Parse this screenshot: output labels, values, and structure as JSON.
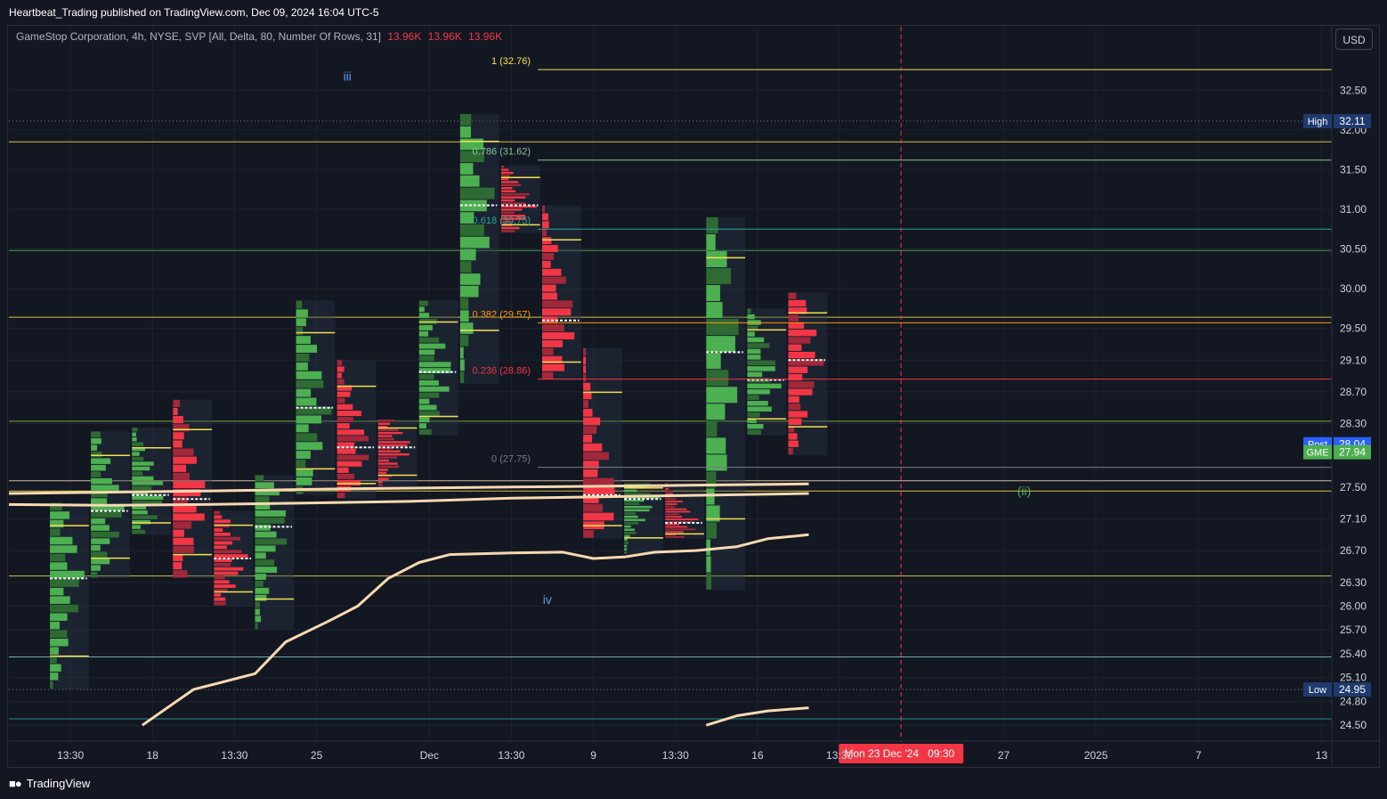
{
  "header": {
    "published_text": "Heartbeat_Trading published on TradingView.com, Dec 09, 2024 16:04 UTC-5"
  },
  "legend": {
    "title": "GameStop Corporation, 4h, NYSE, SVP [All, Delta, 80, Number Of Rows, 31]",
    "values": [
      "13.96K",
      "13.96K",
      "13.96K"
    ]
  },
  "currency_button": "USD",
  "footer": {
    "brand": "TradingView"
  },
  "colors": {
    "background": "#131722",
    "up": "#4caf50",
    "down": "#f23645",
    "fib": "#f5e050",
    "wave_label": "#5b9cf6",
    "vwap": "#f7d9b0"
  },
  "chart_data": {
    "type": "candlestick",
    "symbol": "GME",
    "timeframe": "4h",
    "ylim": [
      24.3,
      33.3
    ],
    "y_ticks": [
      32.5,
      32.0,
      31.5,
      31.0,
      30.5,
      30.0,
      29.5,
      29.1,
      28.7,
      28.3,
      27.5,
      27.1,
      26.7,
      26.3,
      26.0,
      25.7,
      25.4,
      25.1,
      24.8,
      24.5
    ],
    "y_tick_labels": [
      "32.50",
      "32.00",
      "31.50",
      "31.00",
      "30.50",
      "30.00",
      "29.50",
      "29.10",
      "28.70",
      "28.30",
      "27.50",
      "27.10",
      "26.70",
      "26.30",
      "26.00",
      "25.70",
      "25.40",
      "25.10",
      "24.80",
      "24.50"
    ],
    "x_ticks": [
      {
        "label": "13:30",
        "x": 0.2
      },
      {
        "label": "18",
        "x": 1.0
      },
      {
        "label": "13:30",
        "x": 1.8
      },
      {
        "label": "25",
        "x": 2.6
      },
      {
        "label": "Dec",
        "x": 3.7
      },
      {
        "label": "13:30",
        "x": 4.5
      },
      {
        "label": "9",
        "x": 5.3
      },
      {
        "label": "13:30",
        "x": 6.1
      },
      {
        "label": "16",
        "x": 6.9
      },
      {
        "label": "13:30",
        "x": 7.7
      },
      {
        "label": "27",
        "x": 9.3
      },
      {
        "label": "2025",
        "x": 10.2
      },
      {
        "label": "7",
        "x": 11.2
      },
      {
        "label": "13",
        "x": 12.4
      }
    ],
    "xlim": [
      -0.4,
      12.5
    ],
    "price_badges": [
      {
        "label": "High",
        "value": "32.11",
        "price": 32.11,
        "color": "#1e3a6e"
      },
      {
        "label": "Post",
        "value": "28.04",
        "price": 28.04,
        "color": "#2962ff"
      },
      {
        "label": "GME",
        "value": "27.94",
        "price": 27.94,
        "color": "#4caf50"
      },
      {
        "label": "Low",
        "value": "24.95",
        "price": 24.95,
        "color": "#1e3a6e"
      }
    ],
    "crosshair": {
      "date_label": "Mon 23 Dec '24",
      "time_label": "09:30",
      "x": 8.3
    },
    "fib_levels": [
      {
        "ratio": "1",
        "price_text": "32.76",
        "price": 32.76,
        "color": "#f5e050"
      },
      {
        "ratio": "0.786",
        "price_text": "31.62",
        "price": 31.62,
        "color": "#81c995"
      },
      {
        "ratio": "0.618",
        "price_text": "30.75",
        "price": 30.75,
        "color": "#26a69a"
      },
      {
        "ratio": "0.382",
        "price_text": "29.57",
        "price": 29.57,
        "color": "#ff9800"
      },
      {
        "ratio": "0.236",
        "price_text": "28.86",
        "price": 28.86,
        "color": "#f23645"
      },
      {
        "ratio": "0",
        "price_text": "27.75",
        "price": 27.75,
        "color": "#787b86"
      }
    ],
    "horizontal_lines": [
      {
        "price": 31.85,
        "color": "#f5e050"
      },
      {
        "price": 30.48,
        "color": "#4caf50"
      },
      {
        "price": 29.64,
        "color": "#f5e050"
      },
      {
        "price": 28.33,
        "color": "#8bc34a"
      },
      {
        "price": 27.58,
        "color": "#f7d9b0"
      },
      {
        "price": 27.45,
        "color": "#f5e050"
      },
      {
        "price": 26.38,
        "color": "#f5e050"
      },
      {
        "price": 25.36,
        "color": "#80cbc4"
      },
      {
        "price": 24.58,
        "color": "#26a69a"
      }
    ],
    "wave_labels": [
      {
        "text": "iii",
        "x": 2.9,
        "price": 32.62
      },
      {
        "text": "iv",
        "x": 4.85,
        "price": 26.03
      },
      {
        "text": "(ii)",
        "x": 9.5,
        "price": 27.4
      }
    ],
    "volume_profiles": [
      {
        "x": 0.0,
        "high": 27.3,
        "low": 24.95,
        "poc": 26.35,
        "dir": "up"
      },
      {
        "x": 0.4,
        "high": 28.2,
        "low": 26.35,
        "poc": 27.2,
        "dir": "up"
      },
      {
        "x": 0.8,
        "high": 28.25,
        "low": 26.9,
        "poc": 27.4,
        "dir": "up"
      },
      {
        "x": 1.2,
        "high": 28.6,
        "low": 26.35,
        "poc": 27.35,
        "dir": "down"
      },
      {
        "x": 1.6,
        "high": 27.2,
        "low": 26.0,
        "poc": 26.6,
        "dir": "down"
      },
      {
        "x": 2.0,
        "high": 27.65,
        "low": 25.7,
        "poc": 27.0,
        "dir": "up"
      },
      {
        "x": 2.4,
        "high": 29.85,
        "low": 27.4,
        "poc": 28.5,
        "dir": "up"
      },
      {
        "x": 2.8,
        "high": 29.1,
        "low": 27.35,
        "poc": 28.0,
        "dir": "down"
      },
      {
        "x": 3.2,
        "high": 28.35,
        "low": 27.5,
        "poc": 28.0,
        "dir": "down"
      },
      {
        "x": 3.6,
        "high": 29.85,
        "low": 28.15,
        "poc": 28.95,
        "dir": "up"
      },
      {
        "x": 4.0,
        "high": 32.2,
        "low": 28.8,
        "poc": 31.05,
        "dir": "up"
      },
      {
        "x": 4.4,
        "high": 31.55,
        "low": 30.7,
        "poc": 31.05,
        "dir": "down"
      },
      {
        "x": 4.8,
        "high": 31.05,
        "low": 28.85,
        "poc": 29.6,
        "dir": "down"
      },
      {
        "x": 5.2,
        "high": 29.25,
        "low": 26.85,
        "poc": 27.4,
        "dir": "down"
      },
      {
        "x": 5.6,
        "high": 27.55,
        "low": 26.65,
        "poc": 27.35,
        "dir": "up"
      },
      {
        "x": 6.0,
        "high": 27.55,
        "low": 26.85,
        "poc": 27.05,
        "dir": "down"
      },
      {
        "x": 6.4,
        "high": 30.9,
        "low": 26.2,
        "poc": 29.2,
        "dir": "up"
      },
      {
        "x": 6.8,
        "high": 29.75,
        "low": 28.15,
        "poc": 28.85,
        "dir": "up"
      },
      {
        "x": 7.2,
        "high": 29.95,
        "low": 27.9,
        "poc": 29.1,
        "dir": "down"
      }
    ],
    "vwap_lines": [
      {
        "points": [
          [
            0.9,
            24.5
          ],
          [
            1.4,
            24.95
          ],
          [
            2.0,
            25.15
          ],
          [
            2.3,
            25.55
          ],
          [
            2.7,
            25.8
          ],
          [
            3.0,
            26.0
          ],
          [
            3.3,
            26.35
          ],
          [
            3.6,
            26.55
          ],
          [
            3.9,
            26.65
          ],
          [
            4.5,
            26.67
          ],
          [
            5.0,
            26.68
          ],
          [
            5.3,
            26.6
          ],
          [
            5.6,
            26.62
          ],
          [
            5.9,
            26.68
          ],
          [
            6.3,
            26.7
          ],
          [
            6.7,
            26.75
          ],
          [
            7.0,
            26.85
          ],
          [
            7.4,
            26.9
          ]
        ],
        "color": "#f7d9b0"
      },
      {
        "points": [
          [
            -0.4,
            27.28
          ],
          [
            0.5,
            27.27
          ],
          [
            1.5,
            27.28
          ],
          [
            2.5,
            27.3
          ],
          [
            3.5,
            27.32
          ],
          [
            4.5,
            27.36
          ],
          [
            5.5,
            27.38
          ],
          [
            6.5,
            27.4
          ],
          [
            7.4,
            27.42
          ]
        ],
        "color": "#f7d9b0"
      },
      {
        "points": [
          [
            -0.4,
            27.42
          ],
          [
            1.5,
            27.45
          ],
          [
            3.0,
            27.48
          ],
          [
            4.5,
            27.5
          ],
          [
            6.0,
            27.52
          ],
          [
            7.4,
            27.54
          ]
        ],
        "color": "#f7d9b0"
      },
      {
        "points": [
          [
            6.4,
            24.5
          ],
          [
            6.7,
            24.62
          ],
          [
            7.0,
            24.68
          ],
          [
            7.4,
            24.72
          ]
        ],
        "color": "#f7d9b0"
      }
    ]
  }
}
